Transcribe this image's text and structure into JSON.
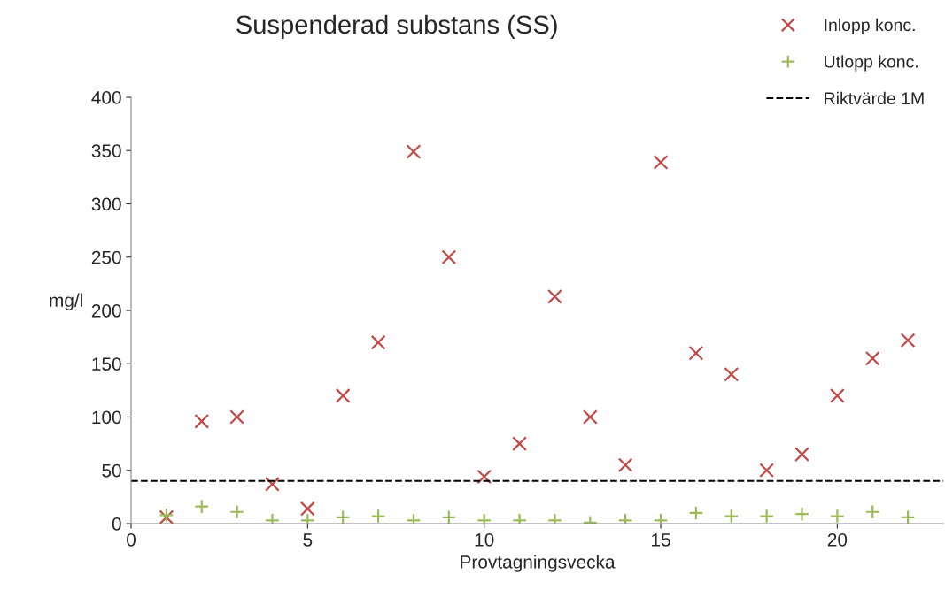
{
  "chart_data": {
    "type": "scatter",
    "title": "Suspenderad substans (SS)",
    "xlabel": "Provtagningsvecka",
    "ylabel": "mg/l",
    "x": [
      1,
      2,
      3,
      4,
      5,
      6,
      7,
      8,
      9,
      10,
      11,
      12,
      13,
      14,
      15,
      16,
      17,
      18,
      19,
      20,
      21,
      22
    ],
    "series": [
      {
        "name": "Inlopp konc.",
        "color": "#be4b48",
        "marker": "cross",
        "values": [
          6,
          96,
          100,
          37,
          14,
          120,
          170,
          349,
          250,
          44,
          75,
          213,
          100,
          55,
          339,
          160,
          140,
          50,
          65,
          120,
          155,
          172
        ]
      },
      {
        "name": "Utlopp konc.",
        "color": "#9bbb59",
        "marker": "plus",
        "values": [
          8,
          16,
          11,
          3,
          3,
          6,
          7,
          3,
          6,
          3,
          3,
          3,
          1,
          3,
          3,
          10,
          7,
          7,
          9,
          7,
          11,
          6
        ]
      }
    ],
    "ref_lines": [
      {
        "axis": "y",
        "value": 40,
        "label": "Riktvärde 1M",
        "color": "#000000",
        "line_style": "dashed"
      }
    ],
    "xlim": [
      0,
      23
    ],
    "xticks": [
      0,
      5,
      10,
      15,
      20
    ],
    "ylim": [
      0,
      400
    ],
    "yticks": [
      0,
      50,
      100,
      150,
      200,
      250,
      300,
      350,
      400
    ],
    "grid": false,
    "legend": "top right"
  }
}
